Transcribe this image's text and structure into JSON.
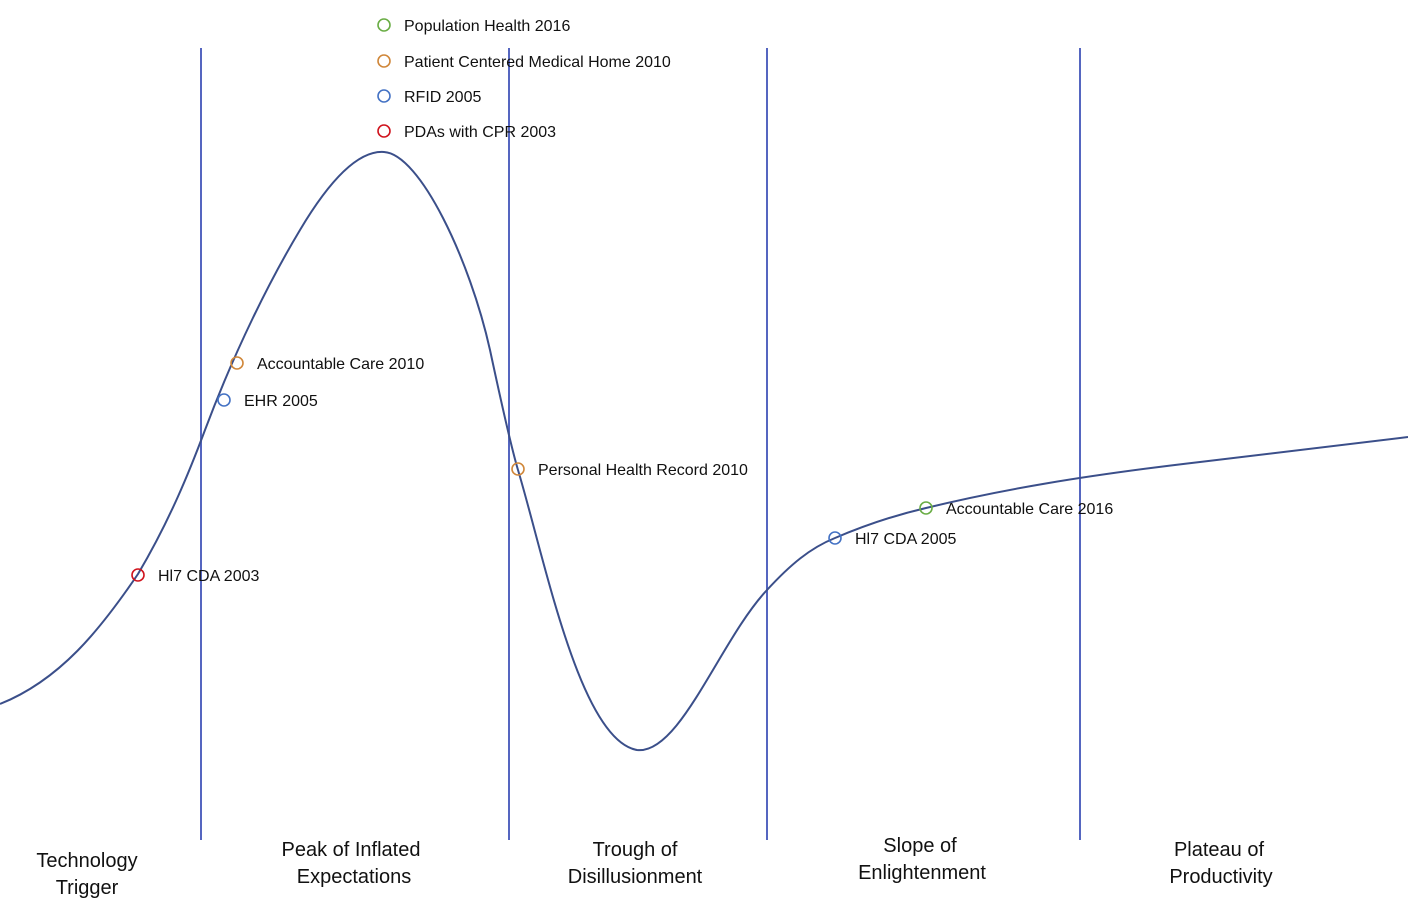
{
  "colors": {
    "curve": "#3b4f8a",
    "divider": "#5566c0",
    "green": "#6aad45",
    "orange": "#d0873a",
    "blue": "#4472c4",
    "red": "#d0141e"
  },
  "legend": [
    {
      "label": "Population Health 2016",
      "color": "green"
    },
    {
      "label": "Patient Centered Medical Home 2010",
      "color": "orange"
    },
    {
      "label": "RFID 2005",
      "color": "blue"
    },
    {
      "label": "PDAs with CPR 2003",
      "color": "red"
    }
  ],
  "points": [
    {
      "label": "Accountable Care 2010",
      "color": "orange"
    },
    {
      "label": "EHR 2005",
      "color": "blue"
    },
    {
      "label": "Hl7 CDA 2003",
      "color": "red"
    },
    {
      "label": "Personal Health Record 2010",
      "color": "orange"
    },
    {
      "label": "Accountable Care 2016",
      "color": "green"
    },
    {
      "label": "Hl7 CDA 2005",
      "color": "blue"
    }
  ],
  "phases": [
    {
      "lines": [
        "Technology",
        "Trigger"
      ]
    },
    {
      "lines": [
        "Peak of Inflated",
        "Expectations"
      ]
    },
    {
      "lines": [
        "Trough of",
        "Disillusionment"
      ]
    },
    {
      "lines": [
        "Slope of",
        "Enlightenment"
      ]
    },
    {
      "lines": [
        "Plateau of",
        "Productivity"
      ]
    }
  ]
}
